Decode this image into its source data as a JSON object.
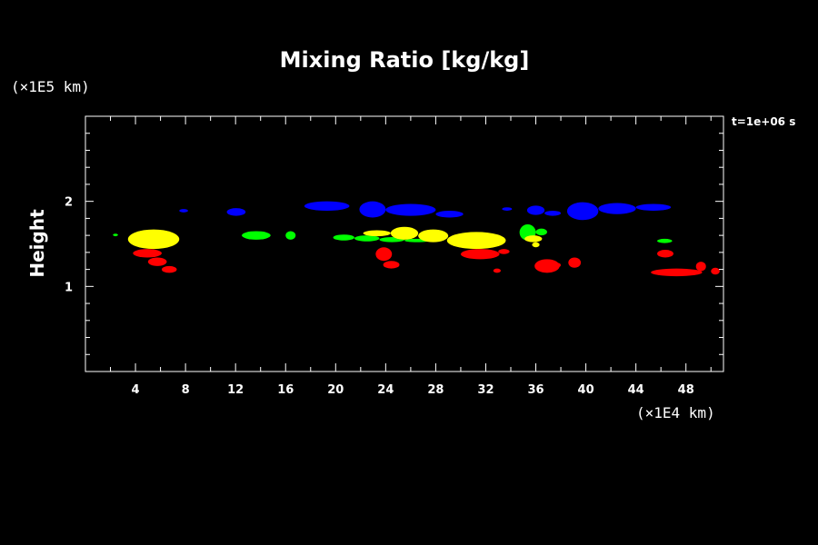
{
  "chart_data": {
    "type": "heatmap",
    "title": "Mixing Ratio [kg/kg]",
    "xlabel": "",
    "ylabel": "Height",
    "x_unit": "(×1E4 km)",
    "y_unit": "(×1E5 km)",
    "annotation": "t=1e+06 s",
    "xlim": [
      0,
      51
    ],
    "ylim": [
      0,
      3
    ],
    "x_ticks": [
      4,
      8,
      12,
      16,
      20,
      24,
      28,
      32,
      36,
      40,
      44,
      48
    ],
    "x_tick_labels": [
      "4",
      "8",
      "12",
      "16",
      "20",
      "24",
      "28",
      "32",
      "36",
      "40",
      "44",
      "48"
    ],
    "x_minor_step": 2,
    "y_ticks": [
      1,
      2
    ],
    "y_tick_labels": [
      "1",
      "2"
    ],
    "y_minor_step": 0.2,
    "background": "#000000",
    "axis_color": "#ffffff",
    "series": [
      {
        "color": "#0000ff",
        "patches": [
          {
            "x": [
              7.5,
              8.2
            ],
            "y": [
              1.87,
              1.91
            ]
          },
          {
            "x": [
              11.3,
              12.8
            ],
            "y": [
              1.83,
              1.92
            ]
          },
          {
            "x": [
              17.5,
              21.1
            ],
            "y": [
              1.89,
              2.0
            ]
          },
          {
            "x": [
              21.9,
              24.0
            ],
            "y": [
              1.81,
              2.0
            ]
          },
          {
            "x": [
              24.0,
              28.0
            ],
            "y": [
              1.83,
              1.97
            ]
          },
          {
            "x": [
              28.0,
              30.2
            ],
            "y": [
              1.81,
              1.89
            ]
          },
          {
            "x": [
              33.3,
              34.1
            ],
            "y": [
              1.89,
              1.93
            ]
          },
          {
            "x": [
              35.3,
              36.7
            ],
            "y": [
              1.84,
              1.95
            ]
          },
          {
            "x": [
              36.7,
              38.0
            ],
            "y": [
              1.83,
              1.89
            ]
          },
          {
            "x": [
              38.5,
              41.0
            ],
            "y": [
              1.78,
              1.99
            ]
          },
          {
            "x": [
              41.0,
              44.0
            ],
            "y": [
              1.85,
              1.98
            ]
          },
          {
            "x": [
              44.0,
              46.8
            ],
            "y": [
              1.89,
              1.97
            ]
          }
        ]
      },
      {
        "color": "#00ff00",
        "patches": [
          {
            "x": [
              2.2,
              2.6
            ],
            "y": [
              1.59,
              1.62
            ]
          },
          {
            "x": [
              12.5,
              14.8
            ],
            "y": [
              1.55,
              1.65
            ]
          },
          {
            "x": [
              16.0,
              16.8
            ],
            "y": [
              1.55,
              1.65
            ]
          },
          {
            "x": [
              19.8,
              21.5
            ],
            "y": [
              1.54,
              1.61
            ]
          },
          {
            "x": [
              21.5,
              23.5
            ],
            "y": [
              1.53,
              1.6
            ]
          },
          {
            "x": [
              23.5,
              25.5
            ],
            "y": [
              1.52,
              1.58
            ]
          },
          {
            "x": [
              25.5,
              27.5
            ],
            "y": [
              1.52,
              1.56
            ]
          },
          {
            "x": [
              34.7,
              36.0
            ],
            "y": [
              1.54,
              1.73
            ]
          },
          {
            "x": [
              36.0,
              36.9
            ],
            "y": [
              1.6,
              1.68
            ]
          },
          {
            "x": [
              45.7,
              46.9
            ],
            "y": [
              1.51,
              1.56
            ]
          }
        ]
      },
      {
        "color": "#ffff00",
        "patches": [
          {
            "x": [
              3.4,
              7.5
            ],
            "y": [
              1.44,
              1.67
            ]
          },
          {
            "x": [
              22.2,
              24.4
            ],
            "y": [
              1.59,
              1.66
            ]
          },
          {
            "x": [
              24.4,
              26.6
            ],
            "y": [
              1.55,
              1.7
            ]
          },
          {
            "x": [
              26.6,
              29.0
            ],
            "y": [
              1.52,
              1.67
            ]
          },
          {
            "x": [
              28.9,
              33.6
            ],
            "y": [
              1.44,
              1.64
            ]
          },
          {
            "x": [
              35.1,
              36.5
            ],
            "y": [
              1.52,
              1.6
            ]
          },
          {
            "x": [
              35.7,
              36.3
            ],
            "y": [
              1.46,
              1.52
            ]
          }
        ]
      },
      {
        "color": "#ff0000",
        "patches": [
          {
            "x": [
              3.8,
              6.1
            ],
            "y": [
              1.34,
              1.44
            ]
          },
          {
            "x": [
              5.0,
              6.5
            ],
            "y": [
              1.24,
              1.34
            ]
          },
          {
            "x": [
              6.1,
              7.3
            ],
            "y": [
              1.16,
              1.24
            ]
          },
          {
            "x": [
              23.2,
              24.5
            ],
            "y": [
              1.3,
              1.46
            ]
          },
          {
            "x": [
              23.8,
              25.1
            ],
            "y": [
              1.21,
              1.3
            ]
          },
          {
            "x": [
              30.0,
              33.1
            ],
            "y": [
              1.32,
              1.44
            ]
          },
          {
            "x": [
              33.0,
              33.9
            ],
            "y": [
              1.38,
              1.44
            ]
          },
          {
            "x": [
              32.6,
              33.2
            ],
            "y": [
              1.16,
              1.21
            ]
          },
          {
            "x": [
              35.9,
              37.9
            ],
            "y": [
              1.16,
              1.32
            ]
          },
          {
            "x": [
              37.3,
              38.0
            ],
            "y": [
              1.22,
              1.28
            ]
          },
          {
            "x": [
              38.6,
              39.6
            ],
            "y": [
              1.22,
              1.34
            ]
          },
          {
            "x": [
              45.7,
              47.0
            ],
            "y": [
              1.34,
              1.43
            ]
          },
          {
            "x": [
              45.2,
              49.3
            ],
            "y": [
              1.12,
              1.21
            ]
          },
          {
            "x": [
              48.8,
              49.6
            ],
            "y": [
              1.18,
              1.29
            ]
          },
          {
            "x": [
              50.0,
              50.7
            ],
            "y": [
              1.14,
              1.22
            ]
          }
        ]
      }
    ]
  }
}
